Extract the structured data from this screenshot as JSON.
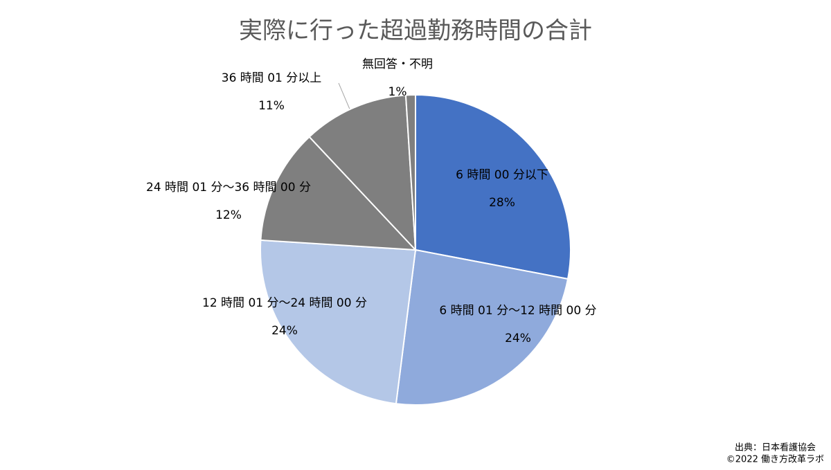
{
  "chart_data": {
    "type": "pie",
    "title": "実際に行った超過勤務時間の合計",
    "categories": [
      "6 時間 00 分以下",
      "6 時間 01 分～12 時間 00 分",
      "12 時間 01 分～24 時間 00 分",
      "24 時間 01 分～36 時間 00 分",
      "36 時間 01 分以上",
      "無回答・不明"
    ],
    "values": [
      28,
      24,
      24,
      12,
      11,
      1
    ],
    "value_labels": [
      "28%",
      "24%",
      "24%",
      "12%",
      "11%",
      "1%"
    ],
    "colors": [
      "#4472c4",
      "#8faadc",
      "#b4c7e7",
      "#7f7f7f",
      "#7f7f7f",
      "#7f7f7f"
    ],
    "source": [
      "出典：日本看護協会",
      "©2022 働き方改革ラボ"
    ]
  }
}
